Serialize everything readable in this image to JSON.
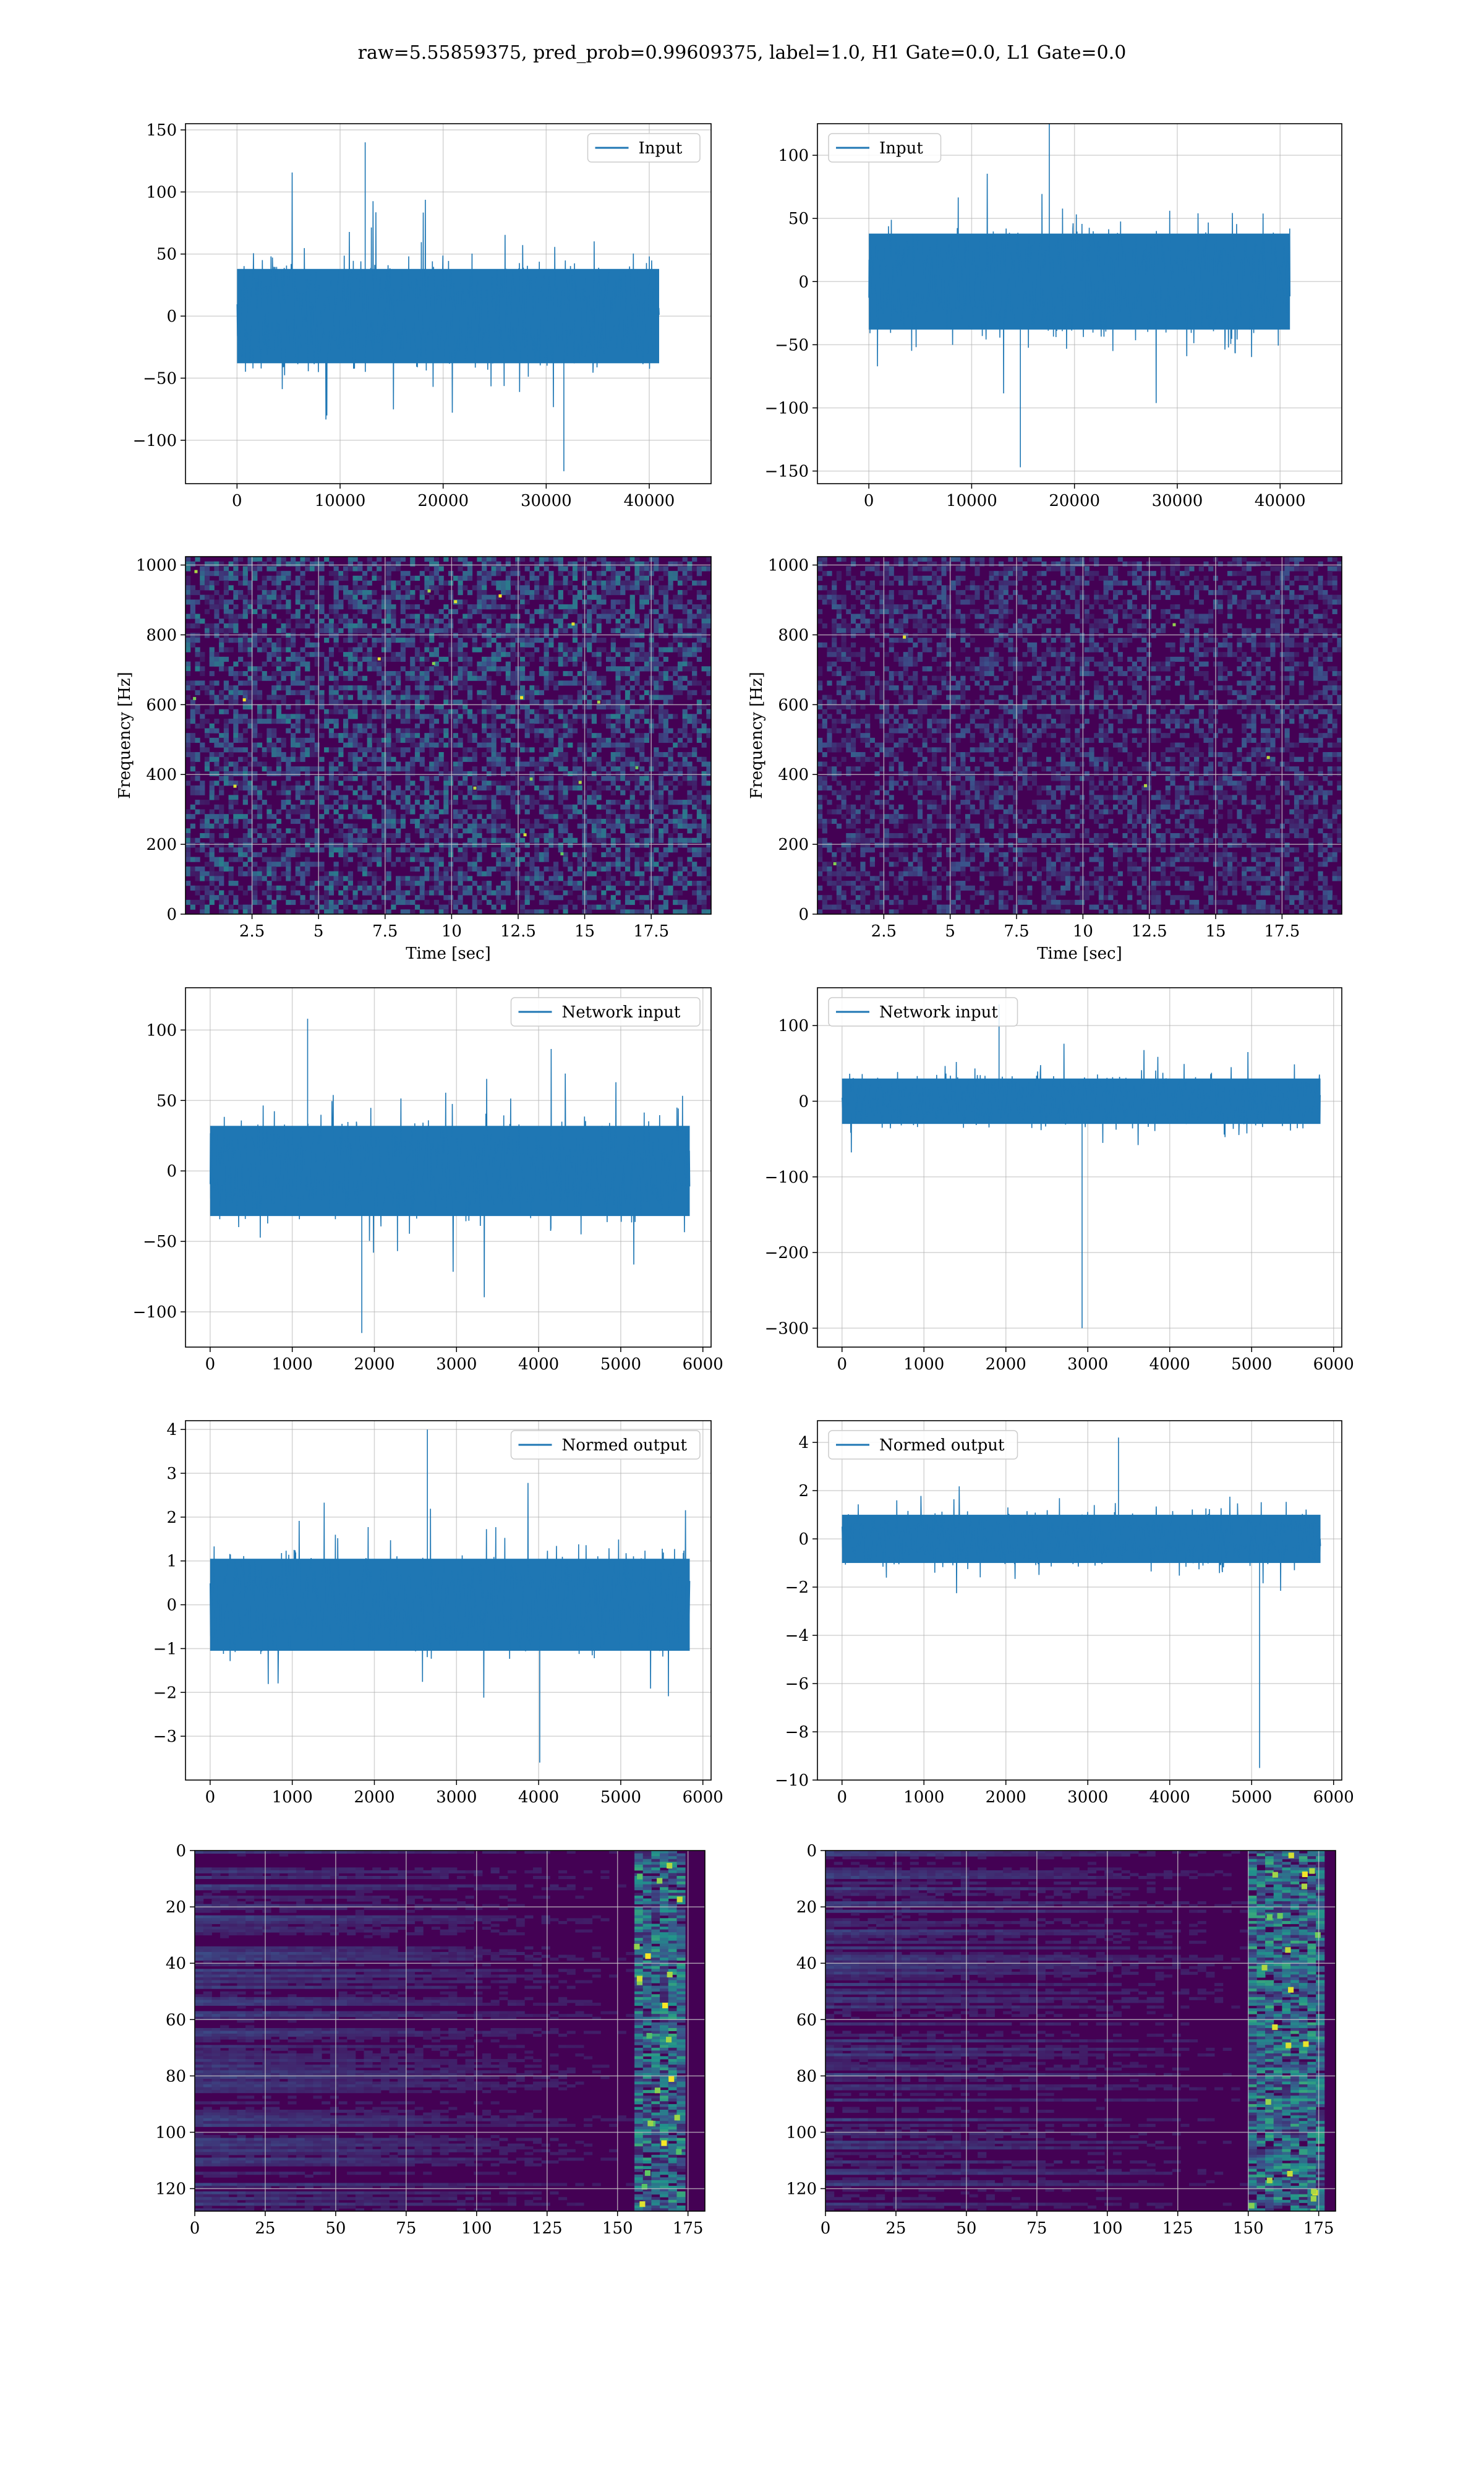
{
  "figure": {
    "title": "raw=5.55859375, pred_prob=0.99609375, label=1.0, H1 Gate=0.0, L1 Gate=0.0"
  },
  "colors": {
    "series": "#1f77b4",
    "grid": "#b0b0b0",
    "viridis_low": "#440154",
    "viridis_mid": "#21918c",
    "viridis_high": "#fde725"
  },
  "chart_data": [
    {
      "id": "r1-left",
      "type": "line",
      "title": "",
      "xlabel": "",
      "ylabel": "",
      "legend": "top-right",
      "grid": true,
      "xlim": [
        -5000,
        46000
      ],
      "ylim": [
        -135,
        155
      ],
      "xticks": [
        0,
        10000,
        20000,
        30000,
        40000
      ],
      "yticks": [
        -100,
        -50,
        0,
        50,
        100,
        150
      ],
      "series": [
        {
          "name": "Input",
          "x_range": [
            0,
            40960
          ],
          "band": [
            -38,
            38
          ],
          "min": -125,
          "max": 140
        }
      ]
    },
    {
      "id": "r1-right",
      "type": "line",
      "title": "",
      "xlabel": "",
      "ylabel": "",
      "legend": "top-left",
      "grid": true,
      "xlim": [
        -5000,
        46000
      ],
      "ylim": [
        -160,
        125
      ],
      "xticks": [
        0,
        10000,
        20000,
        30000,
        40000
      ],
      "yticks": [
        -150,
        -100,
        -50,
        0,
        50,
        100
      ],
      "series": [
        {
          "name": "Input",
          "x_range": [
            0,
            40960
          ],
          "band": [
            -38,
            38
          ],
          "min": -147,
          "max": 130
        }
      ]
    },
    {
      "id": "r2-left",
      "type": "heatmap",
      "title": "",
      "xlabel": "Time [sec]",
      "ylabel": "Frequency [Hz]",
      "grid": true,
      "xlim": [
        0,
        19.75
      ],
      "ylim": [
        0,
        1024
      ],
      "xticks": [
        2.5,
        5.0,
        7.5,
        10.0,
        12.5,
        15.0,
        17.5
      ],
      "yticks": [
        0,
        200,
        400,
        600,
        800,
        1000
      ],
      "intensity": "random speckle, brighter than right panel"
    },
    {
      "id": "r2-right",
      "type": "heatmap",
      "title": "",
      "xlabel": "Time [sec]",
      "ylabel": "Frequency [Hz]",
      "grid": true,
      "xlim": [
        0,
        19.75
      ],
      "ylim": [
        0,
        1024
      ],
      "xticks": [
        2.5,
        5.0,
        7.5,
        10.0,
        12.5,
        15.0,
        17.5
      ],
      "yticks": [
        0,
        200,
        400,
        600,
        800,
        1000
      ],
      "intensity": "random speckle, mostly dark"
    },
    {
      "id": "r3-left",
      "type": "line",
      "title": "",
      "xlabel": "",
      "ylabel": "",
      "legend": "top-right",
      "grid": true,
      "xlim": [
        -300,
        6100
      ],
      "ylim": [
        -125,
        130
      ],
      "xticks": [
        0,
        1000,
        2000,
        3000,
        4000,
        5000,
        6000
      ],
      "yticks": [
        -100,
        -50,
        0,
        50,
        100
      ],
      "series": [
        {
          "name": "Network input",
          "x_range": [
            0,
            5840
          ],
          "band": [
            -32,
            32
          ],
          "min": -115,
          "max": 108
        }
      ]
    },
    {
      "id": "r3-right",
      "type": "line",
      "title": "",
      "xlabel": "",
      "ylabel": "",
      "legend": "top-left",
      "grid": true,
      "xlim": [
        -300,
        6100
      ],
      "ylim": [
        -325,
        150
      ],
      "xticks": [
        0,
        1000,
        2000,
        3000,
        4000,
        5000,
        6000
      ],
      "yticks": [
        -300,
        -200,
        -100,
        0,
        100
      ],
      "series": [
        {
          "name": "Network input",
          "x_range": [
            0,
            5840
          ],
          "band": [
            -30,
            30
          ],
          "min": -300,
          "max": 128
        }
      ]
    },
    {
      "id": "r4-left",
      "type": "line",
      "title": "",
      "xlabel": "",
      "ylabel": "",
      "legend": "top-right",
      "grid": true,
      "xlim": [
        -300,
        6100
      ],
      "ylim": [
        -4.0,
        4.2
      ],
      "xticks": [
        0,
        1000,
        2000,
        3000,
        4000,
        5000,
        6000
      ],
      "yticks": [
        -3,
        -2,
        -1,
        0,
        1,
        2,
        3,
        4
      ],
      "series": [
        {
          "name": "Normed output",
          "x_range": [
            0,
            5840
          ],
          "band": [
            -1.05,
            1.05
          ],
          "min": -3.6,
          "max": 4.0
        }
      ]
    },
    {
      "id": "r4-right",
      "type": "line",
      "title": "",
      "xlabel": "",
      "ylabel": "",
      "legend": "top-left",
      "grid": true,
      "xlim": [
        -300,
        6100
      ],
      "ylim": [
        -10.0,
        4.9
      ],
      "xticks": [
        0,
        1000,
        2000,
        3000,
        4000,
        5000,
        6000
      ],
      "yticks": [
        -10,
        -8,
        -6,
        -4,
        -2,
        0,
        2,
        4
      ],
      "series": [
        {
          "name": "Normed output",
          "x_range": [
            0,
            5840
          ],
          "band": [
            -1.0,
            1.0
          ],
          "min": -9.5,
          "max": 4.2
        }
      ]
    },
    {
      "id": "r5-left",
      "type": "heatmap",
      "title": "",
      "xlabel": "",
      "ylabel": "",
      "grid": true,
      "xlim": [
        0,
        181
      ],
      "ylim": [
        128,
        0
      ],
      "xticks": [
        0,
        25,
        50,
        75,
        100,
        125,
        150,
        175
      ],
      "yticks": [
        0,
        20,
        40,
        60,
        80,
        100,
        120
      ],
      "hot_band": [
        155,
        172
      ]
    },
    {
      "id": "r5-right",
      "type": "heatmap",
      "title": "",
      "xlabel": "",
      "ylabel": "",
      "grid": true,
      "xlim": [
        0,
        181
      ],
      "ylim": [
        128,
        0
      ],
      "xticks": [
        0,
        25,
        50,
        75,
        100,
        125,
        150,
        175
      ],
      "yticks": [
        0,
        20,
        40,
        60,
        80,
        100,
        120
      ],
      "hot_band": [
        150,
        175
      ]
    }
  ]
}
